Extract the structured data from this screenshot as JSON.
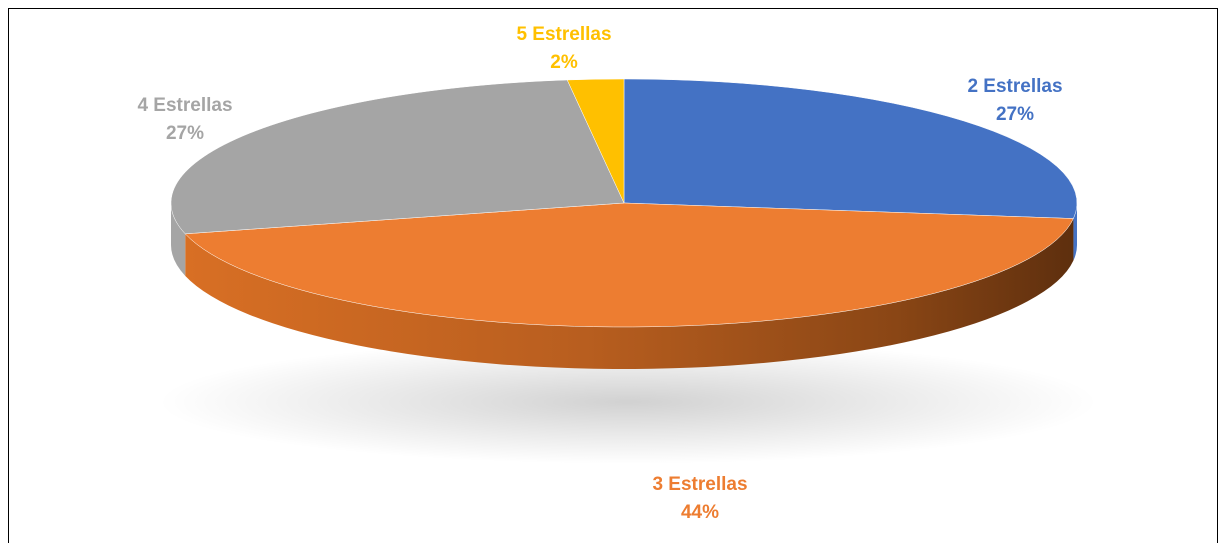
{
  "chart_data": {
    "type": "pie",
    "style": "3d",
    "slices": [
      {
        "label": "2 Estrellas",
        "percent_label": "27%",
        "value": 27,
        "color": "#4472C4"
      },
      {
        "label": "3 Estrellas",
        "percent_label": "44%",
        "value": 44,
        "color": "#ED7D31"
      },
      {
        "label": "4 Estrellas",
        "percent_label": "27%",
        "value": 27,
        "color": "#A5A5A5"
      },
      {
        "label": "5 Estrellas",
        "percent_label": "2%",
        "value": 2,
        "color": "#FFC000"
      }
    ]
  }
}
